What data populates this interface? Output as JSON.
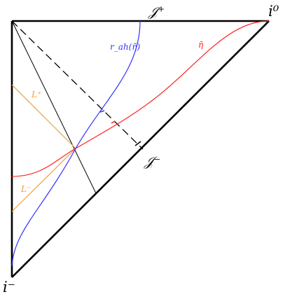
{
  "labels": {
    "scri_plus": "𝒥⁺",
    "scri_minus": "𝒥⁻",
    "i_zero": "i⁰",
    "i_minus": "i⁻",
    "r_ah": "r_ah(η̄)",
    "eta_bar": "η̄",
    "L_plus": "L⁺",
    "L_minus": "L⁻"
  },
  "colors": {
    "boundary": "#000000",
    "r_ah_curve": "#3333ff",
    "eta_bar_curve": "#ff2020",
    "null_lines": "#f0a030",
    "scri_minus_label": "#000000"
  },
  "line_styles": {
    "dashed_line": "dashed",
    "boundary": "thick"
  }
}
